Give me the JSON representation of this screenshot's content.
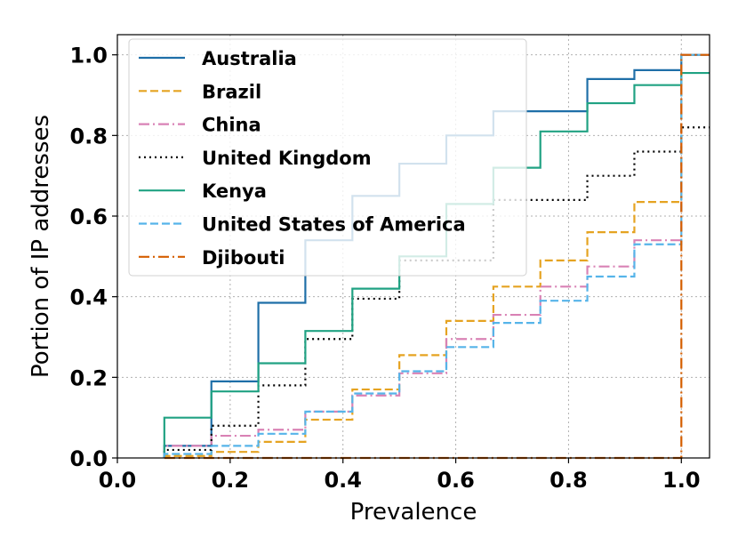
{
  "chart_data": {
    "type": "line",
    "title": "",
    "xlabel": "Prevalence",
    "ylabel": "Portion of IP addresses",
    "xlim": [
      0.0,
      1.05
    ],
    "ylim": [
      0.0,
      1.05
    ],
    "xticks": [
      "0.0",
      "0.2",
      "0.4",
      "0.6",
      "0.8",
      "1.0"
    ],
    "yticks": [
      "0.0",
      "0.2",
      "0.4",
      "0.6",
      "0.8",
      "1.0"
    ],
    "grid": true,
    "legend_position": "upper-left",
    "x": [
      0.0833,
      0.1667,
      0.25,
      0.3333,
      0.4167,
      0.5,
      0.5833,
      0.6667,
      0.75,
      0.8333,
      0.9167,
      1.0
    ],
    "series": [
      {
        "name": "Australia",
        "color": "#1f6fa8",
        "style": "solid",
        "values": [
          0.03,
          0.19,
          0.385,
          0.54,
          0.65,
          0.73,
          0.8,
          0.86,
          0.86,
          0.94,
          0.962,
          1.0
        ]
      },
      {
        "name": "Brazil",
        "color": "#e5a321",
        "style": "dashed",
        "values": [
          0.005,
          0.015,
          0.04,
          0.095,
          0.17,
          0.255,
          0.34,
          0.425,
          0.49,
          0.56,
          0.635,
          1.0
        ]
      },
      {
        "name": "China",
        "color": "#d982b5",
        "style": "dashdot",
        "values": [
          0.03,
          0.055,
          0.07,
          0.115,
          0.155,
          0.21,
          0.295,
          0.355,
          0.425,
          0.475,
          0.54,
          1.0
        ]
      },
      {
        "name": "United Kingdom",
        "color": "#000000",
        "style": "dotted",
        "values": [
          0.02,
          0.08,
          0.18,
          0.295,
          0.395,
          0.49,
          0.49,
          0.64,
          0.64,
          0.7,
          0.76,
          0.82
        ]
      },
      {
        "name": "Kenya",
        "color": "#20a283",
        "style": "solid",
        "values": [
          0.1,
          0.165,
          0.235,
          0.315,
          0.42,
          0.5,
          0.63,
          0.72,
          0.81,
          0.88,
          0.925,
          0.955
        ]
      },
      {
        "name": "United States of America",
        "color": "#56b4e9",
        "style": "dashed",
        "values": [
          0.01,
          0.03,
          0.06,
          0.115,
          0.16,
          0.215,
          0.275,
          0.335,
          0.39,
          0.45,
          0.53,
          1.0
        ]
      },
      {
        "name": "Djibouti",
        "color": "#d55e00",
        "style": "dashdot",
        "values": [
          0.0,
          0.0,
          0.0,
          0.0,
          0.0,
          0.0,
          0.0,
          0.0,
          0.0,
          0.0,
          0.0,
          1.0
        ]
      }
    ]
  }
}
